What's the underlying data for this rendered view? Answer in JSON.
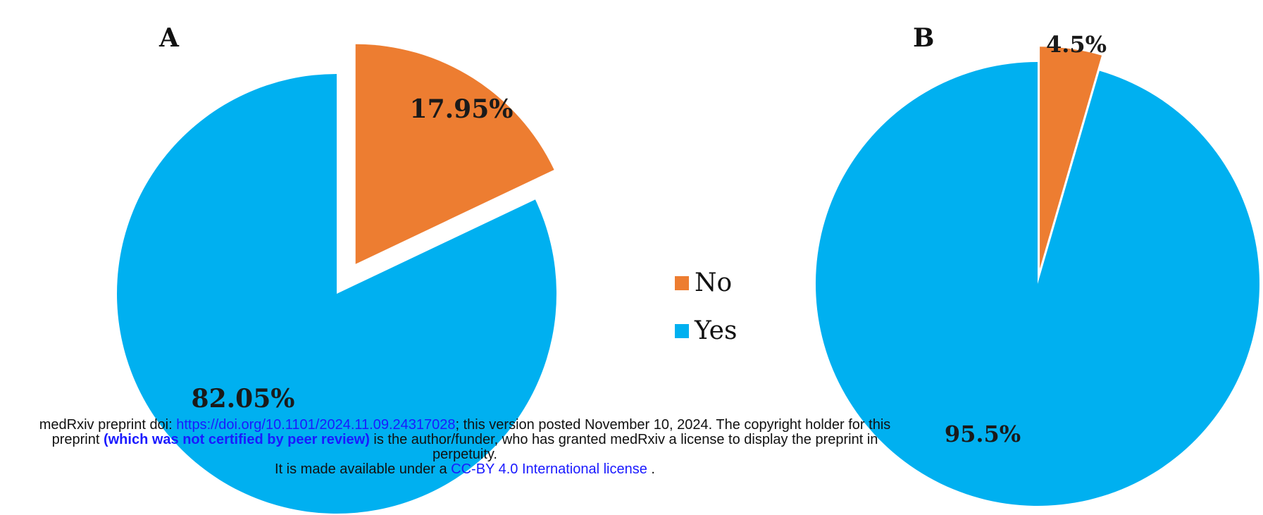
{
  "chart_data": [
    {
      "type": "pie",
      "panel_label": "A",
      "slices": [
        {
          "name": "No",
          "value": 17.95,
          "label": "17.95%",
          "color": "#ED7D31",
          "exploded": true
        },
        {
          "name": "Yes",
          "value": 82.05,
          "label": "82.05%",
          "color": "#00B0F0",
          "exploded": false
        }
      ]
    },
    {
      "type": "pie",
      "panel_label": "B",
      "slices": [
        {
          "name": "No",
          "value": 4.5,
          "label": "4.5%",
          "color": "#ED7D31",
          "exploded": true
        },
        {
          "name": "Yes",
          "value": 95.5,
          "label": "95.5%",
          "color": "#00B0F0",
          "exploded": false
        }
      ]
    }
  ],
  "legend": {
    "items": [
      {
        "label": "No",
        "color": "#ED7D31"
      },
      {
        "label": "Yes",
        "color": "#00B0F0"
      }
    ]
  },
  "notice": {
    "line1_prefix": "medRxiv preprint doi: ",
    "doi_link": "https://doi.org/10.1101/2024.11.09.24317028",
    "line1_suffix": "; this version posted November 10, 2024. The copyright holder for this",
    "line2_prefix": "preprint ",
    "line2_bold": "(which was not certified by peer review)",
    "line2_suffix": " is the author/funder, who has granted medRxiv a license to display the preprint in",
    "line3": "perpetuity.",
    "line4_prefix": "It is made available under a ",
    "license_link": "CC-BY 4.0 International license",
    "line4_suffix": " ."
  }
}
